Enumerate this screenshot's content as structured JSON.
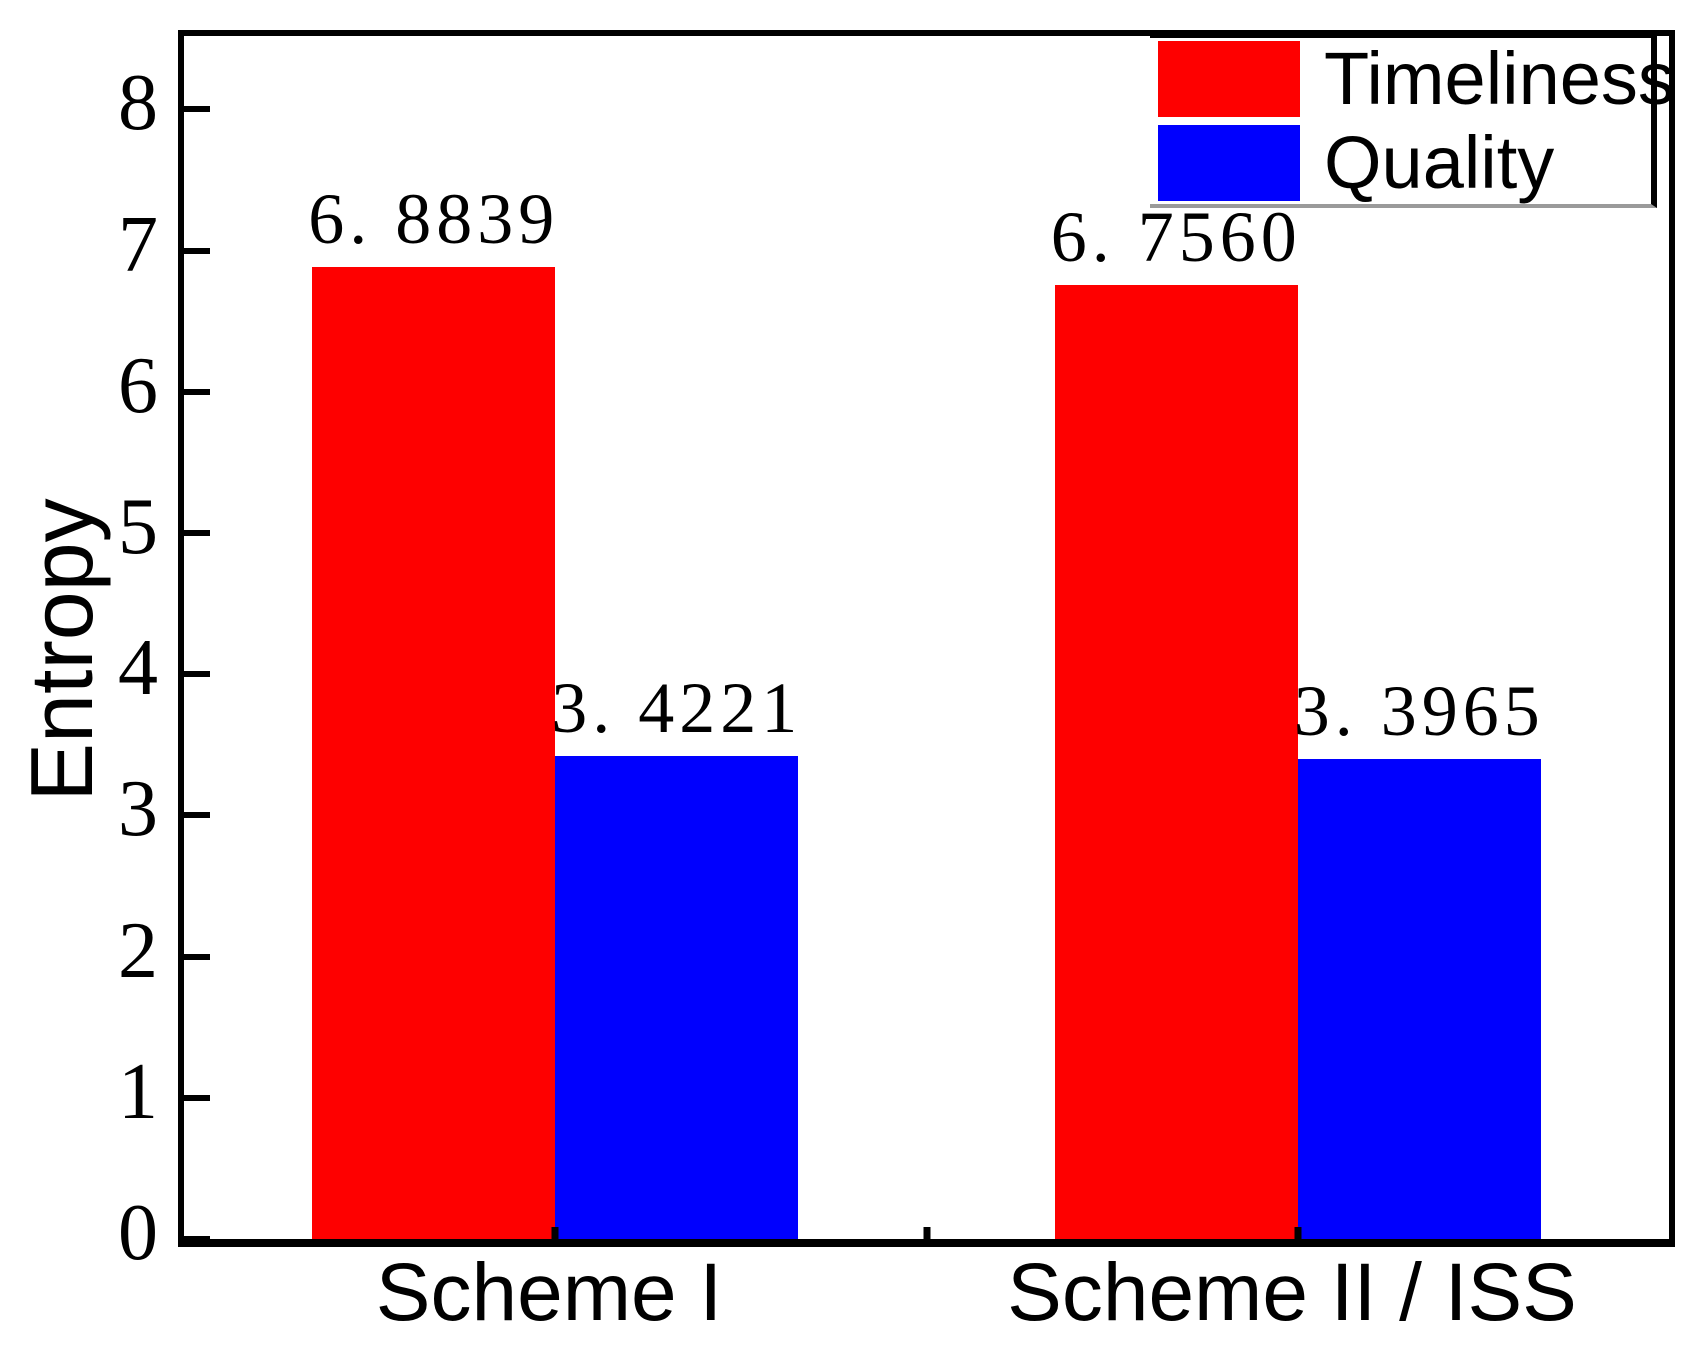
{
  "chart_data": {
    "type": "bar",
    "title": "",
    "xlabel": "",
    "ylabel": "Entropy",
    "ylim": [
      0,
      8.52
    ],
    "yticks": [
      0,
      1,
      2,
      3,
      4,
      5,
      6,
      7,
      8
    ],
    "categories": [
      "Scheme I",
      "Scheme II / ISS"
    ],
    "series": [
      {
        "name": "Timeliness",
        "color": "#fe0000",
        "values": [
          6.8839,
          6.756
        ],
        "value_labels": [
          "6. 8839",
          "6. 7560"
        ]
      },
      {
        "name": "Quality",
        "color": "#0000fe",
        "values": [
          3.4221,
          3.3965
        ],
        "value_labels": [
          "3. 4221",
          "3. 3965"
        ]
      }
    ],
    "legend_position": "top-right",
    "grid": false,
    "colors": {
      "axis": "#000000",
      "background": "#ffffff",
      "text": "#000000"
    }
  }
}
